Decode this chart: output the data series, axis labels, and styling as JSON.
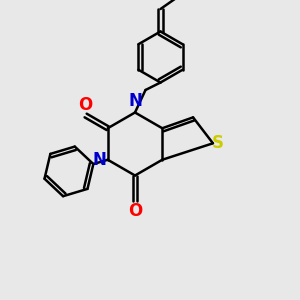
{
  "bg_color": "#e8e8e8",
  "bond_color": "#000000",
  "N_color": "#0000cc",
  "O_color": "#ff0000",
  "S_color": "#cccc00",
  "line_width": 1.8,
  "font_size": 12,
  "xlim": [
    0,
    10
  ],
  "ylim": [
    0,
    10
  ]
}
